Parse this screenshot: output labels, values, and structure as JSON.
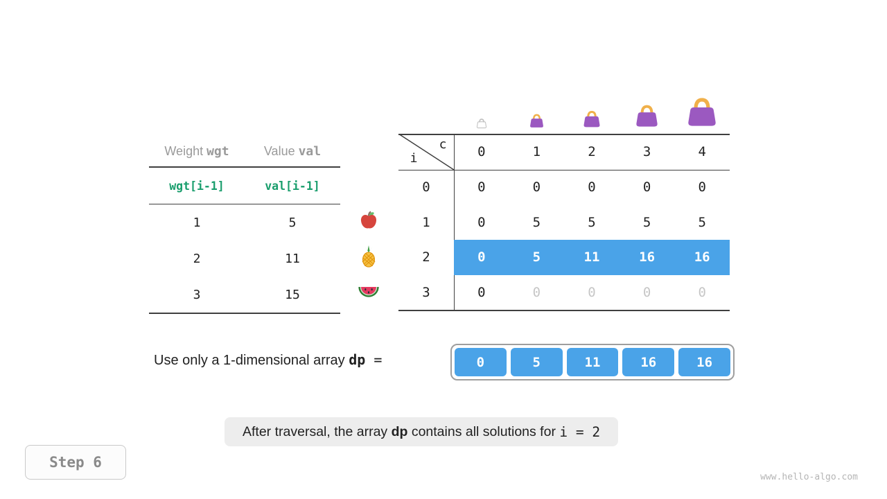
{
  "items_table": {
    "header_weight_prefix": "Weight ",
    "header_weight_code": "wgt",
    "header_value_prefix": "Value ",
    "header_value_code": "val",
    "formula_row": [
      "wgt[i-1]",
      "val[i-1]"
    ],
    "rows": [
      {
        "weight": "1",
        "value": "5",
        "fruit": "apple"
      },
      {
        "weight": "2",
        "value": "11",
        "fruit": "pineapple"
      },
      {
        "weight": "3",
        "value": "15",
        "fruit": "watermelon"
      }
    ]
  },
  "dp_table": {
    "corner_col_var": "c",
    "corner_row_var": "i",
    "col_headers": [
      "0",
      "1",
      "2",
      "3",
      "4"
    ],
    "row_headers": [
      "0",
      "1",
      "2",
      "3"
    ],
    "rows": [
      {
        "cells": [
          "0",
          "0",
          "0",
          "0",
          "0"
        ],
        "style": "normal"
      },
      {
        "cells": [
          "0",
          "5",
          "5",
          "5",
          "5"
        ],
        "style": "normal"
      },
      {
        "cells": [
          "0",
          "5",
          "11",
          "16",
          "16"
        ],
        "style": "highlight"
      },
      {
        "cells": [
          "0",
          "0",
          "0",
          "0",
          "0"
        ],
        "style": "dimmed_after_first"
      }
    ]
  },
  "dp_array": {
    "label_prefix": "Use only a 1-dimensional array ",
    "label_code": "dp",
    "equals": " = ",
    "values": [
      "0",
      "5",
      "11",
      "16",
      "16"
    ]
  },
  "caption": {
    "p1": "After traversal, the array ",
    "code1": "dp",
    "p2": " contains all solutions for ",
    "code2": "i",
    "p3": " = 2"
  },
  "step_badge": "Step 6",
  "watermark": "www.hello-algo.com",
  "colors": {
    "highlight_blue": "#4aa3e8",
    "code_green": "#1a9e6d",
    "line_dark": "#3f3f3f",
    "dim_gray": "#c6c6c6",
    "bag_purple": "#9b59c0",
    "bag_handle": "#f0b04a",
    "caption_bg": "#ededed"
  }
}
